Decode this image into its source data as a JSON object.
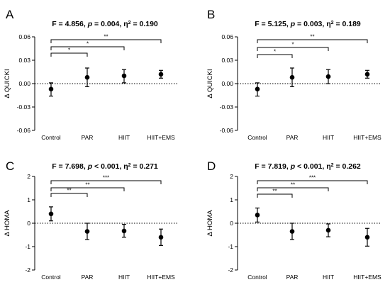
{
  "chart_data": [
    {
      "type": "scatter",
      "panel": "A",
      "title_prefix": "F = 4.856, ",
      "title_p": "p",
      "title_mid": " = 0.004, η",
      "title_sup": "2",
      "title_suffix": " = 0.190",
      "ylabel": "Δ QUICKI",
      "categories": [
        "Control",
        "PAR",
        "HIIT",
        "HIIT+EMS"
      ],
      "values": [
        -0.007,
        0.008,
        0.01,
        0.012
      ],
      "err_low": [
        -0.016,
        -0.004,
        0.001,
        0.007
      ],
      "err_high": [
        0.001,
        0.02,
        0.018,
        0.017
      ],
      "ylim": [
        -0.06,
        0.06
      ],
      "yticks": [
        -0.06,
        -0.03,
        0.0,
        0.03,
        0.06
      ],
      "ytick_labels": [
        "-0.06",
        "-0.03",
        "0.00",
        "0.03",
        "0.06"
      ],
      "zero_line": "dotted",
      "brackets": [
        {
          "from": 0,
          "to": 1,
          "label": "*"
        },
        {
          "from": 0,
          "to": 2,
          "label": "*"
        },
        {
          "from": 0,
          "to": 3,
          "label": "**"
        }
      ]
    },
    {
      "type": "scatter",
      "panel": "B",
      "title_prefix": "F = 5.125, ",
      "title_p": "p",
      "title_mid": " = 0.003, η",
      "title_sup": "2",
      "title_suffix": " = 0.189",
      "ylabel": "Δ QUICKI",
      "categories": [
        "Control",
        "PAR",
        "HIIT",
        "HIIT+EMS"
      ],
      "values": [
        -0.007,
        0.008,
        0.009,
        0.012
      ],
      "err_low": [
        -0.016,
        -0.004,
        0.0,
        0.007
      ],
      "err_high": [
        0.001,
        0.02,
        0.018,
        0.017
      ],
      "ylim": [
        -0.06,
        0.06
      ],
      "yticks": [
        -0.06,
        -0.03,
        0.0,
        0.03,
        0.06
      ],
      "ytick_labels": [
        "-0.06",
        "-0.03",
        "0.00",
        "0.03",
        "0.06"
      ],
      "zero_line": "dotted",
      "brackets": [
        {
          "from": 0,
          "to": 1,
          "label": "*"
        },
        {
          "from": 0,
          "to": 2,
          "label": "*"
        },
        {
          "from": 0,
          "to": 3,
          "label": "**"
        }
      ]
    },
    {
      "type": "scatter",
      "panel": "C",
      "title_prefix": "F = 7.698, ",
      "title_p": "p",
      "title_mid": " < 0.001, η",
      "title_sup": "2",
      "title_suffix": " = 0.271",
      "ylabel": "Δ HOMA",
      "categories": [
        "Control",
        "PAR",
        "HIIT",
        "HIIT+EMS"
      ],
      "values": [
        0.4,
        -0.35,
        -0.33,
        -0.6
      ],
      "err_low": [
        0.1,
        -0.7,
        -0.6,
        -0.95
      ],
      "err_high": [
        0.7,
        0.0,
        -0.05,
        -0.25
      ],
      "ylim": [
        -2,
        2
      ],
      "yticks": [
        -2,
        -1,
        0,
        1,
        2
      ],
      "ytick_labels": [
        "-2",
        "-1",
        "0",
        "1",
        "2"
      ],
      "zero_line": "dotted",
      "brackets": [
        {
          "from": 0,
          "to": 1,
          "label": "**"
        },
        {
          "from": 0,
          "to": 2,
          "label": "**"
        },
        {
          "from": 0,
          "to": 3,
          "label": "***"
        }
      ]
    },
    {
      "type": "scatter",
      "panel": "D",
      "title_prefix": "F = 7.819, ",
      "title_p": "p",
      "title_mid": " < 0.001, η",
      "title_sup": "2",
      "title_suffix": " = 0.262",
      "ylabel": "Δ HOMA",
      "categories": [
        "Control",
        "PAR",
        "HIIT",
        "HIIT+EMS"
      ],
      "values": [
        0.35,
        -0.35,
        -0.3,
        -0.6
      ],
      "err_low": [
        0.05,
        -0.7,
        -0.58,
        -0.98
      ],
      "err_high": [
        0.65,
        0.0,
        -0.03,
        -0.22
      ],
      "ylim": [
        -2,
        2
      ],
      "yticks": [
        -2,
        -1,
        0,
        1,
        2
      ],
      "ytick_labels": [
        "-2",
        "-1",
        "0",
        "1",
        "2"
      ],
      "zero_line": "dotted",
      "brackets": [
        {
          "from": 0,
          "to": 1,
          "label": "**"
        },
        {
          "from": 0,
          "to": 2,
          "label": "**"
        },
        {
          "from": 0,
          "to": 3,
          "label": "***"
        }
      ]
    }
  ]
}
